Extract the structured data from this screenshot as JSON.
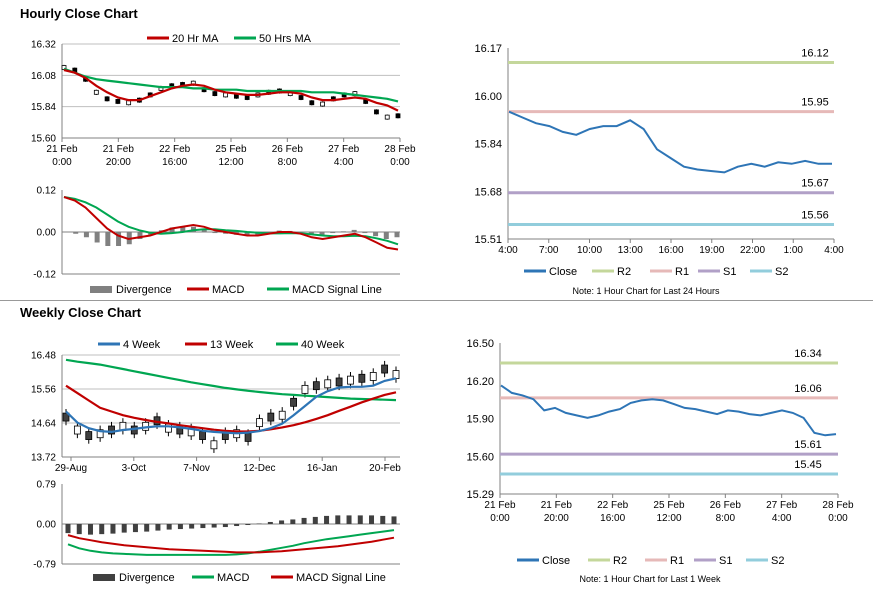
{
  "titles": {
    "hourly": "Hourly Close Chart",
    "weekly": "Weekly Close Chart"
  },
  "colors": {
    "red": "#c00000",
    "green": "#00a651",
    "blue": "#2e75b6",
    "grid": "#bfbfbf",
    "r2": "#c4d79b",
    "r1": "#e6b9b8",
    "s1": "#b1a0c7",
    "s2": "#92cddc",
    "div": "#808080",
    "divDark": "#404040"
  },
  "chart_data": [
    {
      "id": "hourly_price",
      "type": "line",
      "legend": [
        "20 Hr MA",
        "50 Hrs MA"
      ],
      "yticks": [
        "16.32",
        "16.08",
        "15.84",
        "15.60"
      ],
      "ylim": [
        15.6,
        16.32
      ],
      "xticks": [
        [
          "21 Feb",
          "0:00"
        ],
        [
          "21 Feb",
          "20:00"
        ],
        [
          "22 Feb",
          "16:00"
        ],
        [
          "25 Feb",
          "12:00"
        ],
        [
          "26 Feb",
          "8:00"
        ],
        [
          "27 Feb",
          "4:00"
        ],
        [
          "28 Feb",
          "0:00"
        ]
      ],
      "series": [
        {
          "name": "20 Hr MA",
          "values": [
            16.12,
            16.1,
            16.06,
            16.0,
            15.95,
            15.91,
            15.89,
            15.89,
            15.92,
            15.95,
            15.98,
            16.0,
            16.01,
            16.0,
            15.97,
            15.95,
            15.94,
            15.93,
            15.93,
            15.94,
            15.95,
            15.95,
            15.94,
            15.91,
            15.89,
            15.89,
            15.9,
            15.91,
            15.9,
            15.87,
            15.85,
            15.81
          ]
        },
        {
          "name": "50 Hrs MA",
          "values": [
            16.13,
            16.1,
            16.07,
            16.05,
            16.04,
            16.03,
            16.02,
            16.01,
            16.0,
            15.99,
            15.99,
            15.99,
            15.98,
            15.98,
            15.97,
            15.97,
            15.97,
            15.96,
            15.96,
            15.96,
            15.96,
            15.96,
            15.96,
            15.95,
            15.95,
            15.95,
            15.94,
            15.93,
            15.92,
            15.91,
            15.9,
            15.88
          ]
        },
        {
          "name": "Close",
          "values": [
            16.14,
            16.12,
            16.05,
            15.95,
            15.9,
            15.88,
            15.87,
            15.89,
            15.93,
            15.98,
            16.0,
            16.01,
            16.02,
            15.97,
            15.94,
            15.93,
            15.92,
            15.91,
            15.93,
            15.95,
            15.96,
            15.94,
            15.91,
            15.87,
            15.86,
            15.9,
            15.93,
            15.94,
            15.88,
            15.8,
            15.76,
            15.77
          ]
        }
      ]
    },
    {
      "id": "hourly_macd",
      "type": "line",
      "legend": [
        "Divergence",
        "MACD",
        "MACD Signal Line"
      ],
      "yticks": [
        "0.12",
        "0.00",
        "-0.12"
      ],
      "ylim": [
        -0.12,
        0.12
      ],
      "series": [
        {
          "name": "MACD",
          "values": [
            0.1,
            0.09,
            0.07,
            0.04,
            0.01,
            -0.01,
            -0.02,
            -0.015,
            -0.01,
            0.0,
            0.01,
            0.015,
            0.02,
            0.015,
            0.005,
            0.0,
            -0.005,
            -0.01,
            -0.01,
            -0.005,
            0.0,
            0.0,
            -0.005,
            -0.015,
            -0.02,
            -0.015,
            -0.01,
            -0.005,
            -0.015,
            -0.03,
            -0.045,
            -0.05
          ]
        },
        {
          "name": "MACD Signal Line",
          "values": [
            0.1,
            0.095,
            0.085,
            0.07,
            0.05,
            0.03,
            0.015,
            0.005,
            -0.002,
            -0.005,
            -0.003,
            0.0,
            0.005,
            0.008,
            0.008,
            0.005,
            0.003,
            0.0,
            -0.002,
            -0.004,
            -0.004,
            -0.003,
            -0.004,
            -0.007,
            -0.01,
            -0.012,
            -0.012,
            -0.011,
            -0.012,
            -0.018,
            -0.025,
            -0.035
          ]
        },
        {
          "name": "Divergence",
          "values": [
            0.0,
            -0.005,
            -0.015,
            -0.03,
            -0.04,
            -0.04,
            -0.035,
            -0.02,
            -0.008,
            0.005,
            0.013,
            0.015,
            0.015,
            0.007,
            -0.003,
            -0.005,
            -0.008,
            -0.01,
            -0.008,
            -0.001,
            0.004,
            0.003,
            -0.001,
            -0.008,
            -0.01,
            -0.003,
            0.002,
            0.006,
            -0.003,
            -0.012,
            -0.02,
            -0.015
          ]
        }
      ]
    },
    {
      "id": "pivot_24h",
      "type": "line",
      "yticks": [
        "16.17",
        "16.00",
        "15.84",
        "15.68",
        "15.51"
      ],
      "ylim": [
        15.51,
        16.17
      ],
      "xticks": [
        "4:00",
        "7:00",
        "10:00",
        "13:00",
        "16:00",
        "19:00",
        "22:00",
        "1:00",
        "4:00"
      ],
      "levels": [
        {
          "name": "R2",
          "value": 16.12,
          "label": "16.12"
        },
        {
          "name": "R1",
          "value": 15.95,
          "label": "15.95"
        },
        {
          "name": "S1",
          "value": 15.67,
          "label": "15.67"
        },
        {
          "name": "S2",
          "value": 15.56,
          "label": "15.56"
        }
      ],
      "legend": [
        "Close",
        "R2",
        "R1",
        "S1",
        "S2"
      ],
      "note": "Note: 1 Hour Chart for Last 24 Hours",
      "close": [
        15.95,
        15.93,
        15.91,
        15.9,
        15.88,
        15.87,
        15.89,
        15.9,
        15.9,
        15.92,
        15.89,
        15.82,
        15.79,
        15.76,
        15.75,
        15.745,
        15.74,
        15.76,
        15.77,
        15.76,
        15.775,
        15.77,
        15.78,
        15.77,
        15.77
      ]
    },
    {
      "id": "weekly_price",
      "type": "line",
      "legend": [
        "4 Week",
        "13 Week",
        "40 Week"
      ],
      "yticks": [
        "16.48",
        "15.56",
        "14.64",
        "13.72"
      ],
      "ylim": [
        13.72,
        16.48
      ],
      "xticks": [
        "29-Aug",
        "3-Oct",
        "7-Nov",
        "12-Dec",
        "16-Jan",
        "20-Feb"
      ],
      "series": [
        {
          "name": "4 Week",
          "values": [
            14.95,
            14.65,
            14.5,
            14.42,
            14.4,
            14.45,
            14.48,
            14.52,
            14.55,
            14.55,
            14.52,
            14.48,
            14.43,
            14.4,
            14.38,
            14.36,
            14.38,
            14.42,
            14.5,
            14.62,
            14.85,
            15.1,
            15.35,
            15.5,
            15.6,
            15.62,
            15.62,
            15.65,
            15.78,
            15.85
          ]
        },
        {
          "name": "13 Week",
          "values": [
            15.65,
            15.45,
            15.25,
            15.05,
            14.95,
            14.85,
            14.78,
            14.72,
            14.67,
            14.63,
            14.58,
            14.54,
            14.5,
            14.46,
            14.43,
            14.41,
            14.41,
            14.43,
            14.47,
            14.52,
            14.58,
            14.66,
            14.75,
            14.85,
            14.97,
            15.08,
            15.2,
            15.3,
            15.4,
            15.47
          ]
        },
        {
          "name": "40 Week",
          "values": [
            16.35,
            16.3,
            16.26,
            16.22,
            16.16,
            16.1,
            16.04,
            15.98,
            15.92,
            15.86,
            15.8,
            15.74,
            15.69,
            15.64,
            15.59,
            15.55,
            15.51,
            15.48,
            15.45,
            15.42,
            15.4,
            15.38,
            15.36,
            15.34,
            15.32,
            15.3,
            15.29,
            15.28,
            15.27,
            15.26
          ]
        },
        {
          "name": "Candles",
          "values": [
            14.8,
            14.45,
            14.3,
            14.35,
            14.45,
            14.55,
            14.45,
            14.55,
            14.7,
            14.5,
            14.45,
            14.4,
            14.3,
            14.05,
            14.3,
            14.35,
            14.25,
            14.65,
            14.8,
            14.85,
            15.2,
            15.55,
            15.65,
            15.7,
            15.75,
            15.8,
            15.85,
            15.9,
            16.1,
            15.95
          ]
        }
      ]
    },
    {
      "id": "weekly_macd",
      "type": "line",
      "legend": [
        "Divergence",
        "MACD",
        "MACD Signal Line"
      ],
      "yticks": [
        "0.79",
        "0.00",
        "-0.79"
      ],
      "ylim": [
        -0.79,
        0.79
      ],
      "series": [
        {
          "name": "MACD",
          "values": [
            -0.4,
            -0.48,
            -0.53,
            -0.56,
            -0.58,
            -0.59,
            -0.6,
            -0.61,
            -0.61,
            -0.61,
            -0.61,
            -0.61,
            -0.61,
            -0.61,
            -0.61,
            -0.6,
            -0.58,
            -0.55,
            -0.51,
            -0.47,
            -0.43,
            -0.38,
            -0.34,
            -0.3,
            -0.27,
            -0.24,
            -0.21,
            -0.18,
            -0.15,
            -0.12
          ]
        },
        {
          "name": "MACD Signal Line",
          "values": [
            -0.22,
            -0.28,
            -0.32,
            -0.36,
            -0.39,
            -0.42,
            -0.44,
            -0.46,
            -0.48,
            -0.5,
            -0.51,
            -0.52,
            -0.53,
            -0.54,
            -0.55,
            -0.56,
            -0.56,
            -0.56,
            -0.55,
            -0.54,
            -0.52,
            -0.5,
            -0.48,
            -0.46,
            -0.44,
            -0.41,
            -0.38,
            -0.35,
            -0.31,
            -0.27
          ]
        },
        {
          "name": "Divergence",
          "values": [
            -0.18,
            -0.2,
            -0.21,
            -0.2,
            -0.19,
            -0.17,
            -0.16,
            -0.15,
            -0.13,
            -0.11,
            -0.1,
            -0.09,
            -0.08,
            -0.07,
            -0.06,
            -0.04,
            -0.02,
            0.01,
            0.04,
            0.07,
            0.09,
            0.12,
            0.14,
            0.16,
            0.17,
            0.17,
            0.17,
            0.17,
            0.16,
            0.15
          ]
        }
      ]
    },
    {
      "id": "pivot_week",
      "type": "line",
      "yticks": [
        "16.50",
        "16.20",
        "15.90",
        "15.60",
        "15.29"
      ],
      "ylim": [
        15.29,
        16.5
      ],
      "xticks": [
        [
          "21 Feb",
          "0:00"
        ],
        [
          "21 Feb",
          "20:00"
        ],
        [
          "22 Feb",
          "16:00"
        ],
        [
          "25 Feb",
          "12:00"
        ],
        [
          "26 Feb",
          "8:00"
        ],
        [
          "27 Feb",
          "4:00"
        ],
        [
          "28 Feb",
          "0:00"
        ]
      ],
      "levels": [
        {
          "name": "R2",
          "value": 16.34,
          "label": "16.34"
        },
        {
          "name": "R1",
          "value": 16.06,
          "label": "16.06"
        },
        {
          "name": "S1",
          "value": 15.61,
          "label": "15.61"
        },
        {
          "name": "S2",
          "value": 15.45,
          "label": "15.45"
        }
      ],
      "legend": [
        "Close",
        "R2",
        "R1",
        "S1",
        "S2"
      ],
      "note": "Note: 1 Hour Chart for Last 1 Week",
      "close": [
        16.16,
        16.1,
        16.08,
        16.05,
        15.96,
        15.98,
        15.94,
        15.92,
        15.9,
        15.92,
        15.95,
        15.97,
        16.02,
        16.04,
        16.05,
        16.04,
        16.01,
        15.98,
        15.97,
        15.95,
        15.93,
        15.96,
        15.95,
        15.93,
        15.92,
        15.94,
        15.96,
        15.94,
        15.9,
        15.78,
        15.76,
        15.77
      ]
    }
  ]
}
